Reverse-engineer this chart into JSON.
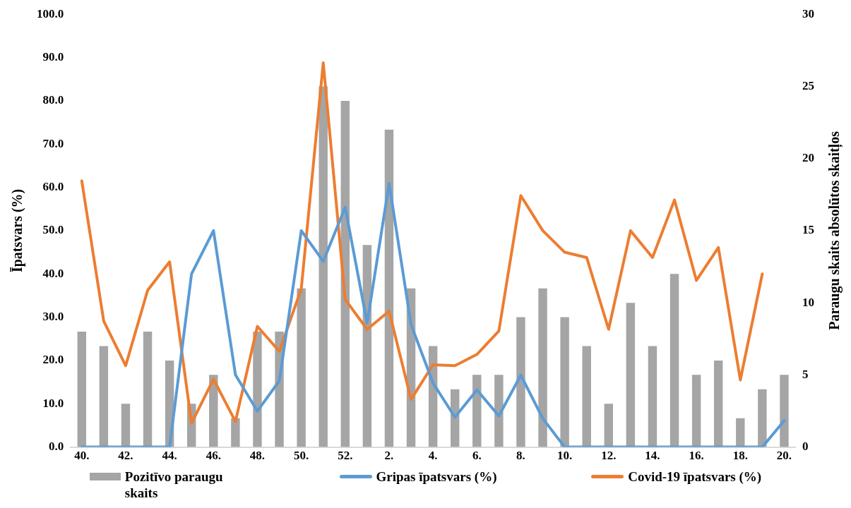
{
  "chart_data": {
    "type": "bar",
    "ylabel": "Īpatsvars (%)",
    "y2label": "Paraugu skaits absolūtos skaitļos",
    "categories": [
      "40.",
      null,
      "42.",
      null,
      "44.",
      null,
      "46.",
      null,
      "48.",
      null,
      "50.",
      null,
      "52.",
      null,
      "2.",
      null,
      "4.",
      null,
      "6.",
      null,
      "8.",
      null,
      "10.",
      null,
      "12.",
      null,
      "14.",
      null,
      "16.",
      null,
      "18.",
      null,
      "20."
    ],
    "series": [
      {
        "name": "Pozitīvo paraugu skaits",
        "axis": "y2",
        "color": "#a5a5a5",
        "values": [
          8,
          7,
          3,
          8,
          6,
          3,
          5,
          2,
          8,
          8,
          11,
          25,
          24,
          14,
          22,
          11,
          7,
          4,
          5,
          5,
          9,
          11,
          9,
          7,
          3,
          10,
          7,
          12,
          5,
          6,
          2,
          4,
          5
        ]
      },
      {
        "name": "Gripas īpatsvars (%)",
        "type": "line",
        "color": "#5b9bd5",
        "values": [
          0,
          0,
          0,
          0,
          0,
          40,
          50,
          16.7,
          8.3,
          15.3,
          50,
          42.9,
          55.4,
          28.6,
          60.9,
          28.3,
          14.8,
          6.9,
          13.2,
          7.2,
          16.6,
          6.6,
          0,
          0,
          0,
          0,
          0,
          0,
          0,
          0,
          0,
          0,
          6.1
        ]
      },
      {
        "name": "Covid-19 īpatsvars (%)",
        "type": "line",
        "color": "#ed7d31",
        "values": [
          61.5,
          29.1,
          18.8,
          36.2,
          42.8,
          5.5,
          15.7,
          5.9,
          27.9,
          22.1,
          36.6,
          88.8,
          34.1,
          27.2,
          31.4,
          11.0,
          19.0,
          18.8,
          21.4,
          26.8,
          58.1,
          50.0,
          45.0,
          43.8,
          27.2,
          50.0,
          43.8,
          57.1,
          38.5,
          46.1,
          15.5,
          40.0,
          null
        ]
      }
    ],
    "ylim": [
      0,
      100
    ],
    "yticks": [
      {
        "value": 0,
        "label": "0.0"
      },
      {
        "value": 10,
        "label": "10.0"
      },
      {
        "value": 20,
        "label": "20.0"
      },
      {
        "value": 30,
        "label": "30.0"
      },
      {
        "value": 40,
        "label": "40.0"
      },
      {
        "value": 50,
        "label": "50.0"
      },
      {
        "value": 60,
        "label": "60.0"
      },
      {
        "value": 70,
        "label": "70.0"
      },
      {
        "value": 80,
        "label": "80.0"
      },
      {
        "value": 90,
        "label": "90.0"
      },
      {
        "value": 100,
        "label": "100.0"
      }
    ],
    "y2lim": [
      0,
      30
    ],
    "y2ticks": [
      0,
      5,
      10,
      15,
      20,
      25,
      30
    ],
    "grid": false,
    "legend": "bottom",
    "marker": "none",
    "line_style": "solid"
  }
}
